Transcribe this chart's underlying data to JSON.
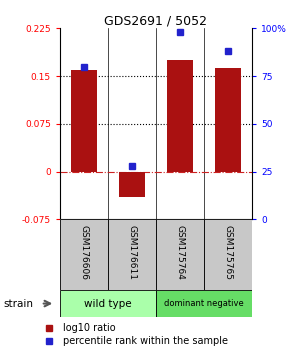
{
  "title": "GDS2691 / 5052",
  "samples": [
    "GSM176606",
    "GSM176611",
    "GSM175764",
    "GSM175765"
  ],
  "log10_ratio": [
    0.16,
    -0.04,
    0.175,
    0.163
  ],
  "percentile_rank": [
    80,
    28,
    98,
    88
  ],
  "bar_color": "#aa1111",
  "dot_color": "#2222cc",
  "ylim_left": [
    -0.075,
    0.225
  ],
  "ylim_right": [
    0,
    100
  ],
  "yticks_left": [
    -0.075,
    0,
    0.075,
    0.15,
    0.225
  ],
  "yticks_right": [
    0,
    25,
    50,
    75,
    100
  ],
  "ytick_labels_left": [
    "-0.075",
    "0",
    "0.075",
    "0.15",
    "0.225"
  ],
  "ytick_labels_right": [
    "0",
    "25",
    "50",
    "75",
    "100%"
  ],
  "hlines_dotted": [
    0.075,
    0.15
  ],
  "hline_dashed_color": "#cc2222",
  "groups": [
    {
      "label": "wild type",
      "samples": [
        0,
        1
      ],
      "color": "#aaffaa"
    },
    {
      "label": "dominant negative",
      "samples": [
        2,
        3
      ],
      "color": "#66dd66"
    }
  ],
  "strain_label": "strain",
  "legend_items": [
    {
      "color": "#aa1111",
      "label": "log10 ratio"
    },
    {
      "color": "#2222cc",
      "label": "percentile rank within the sample"
    }
  ],
  "bg_color": "#ffffff",
  "label_area_bg": "#c8c8c8",
  "bar_width": 0.55
}
